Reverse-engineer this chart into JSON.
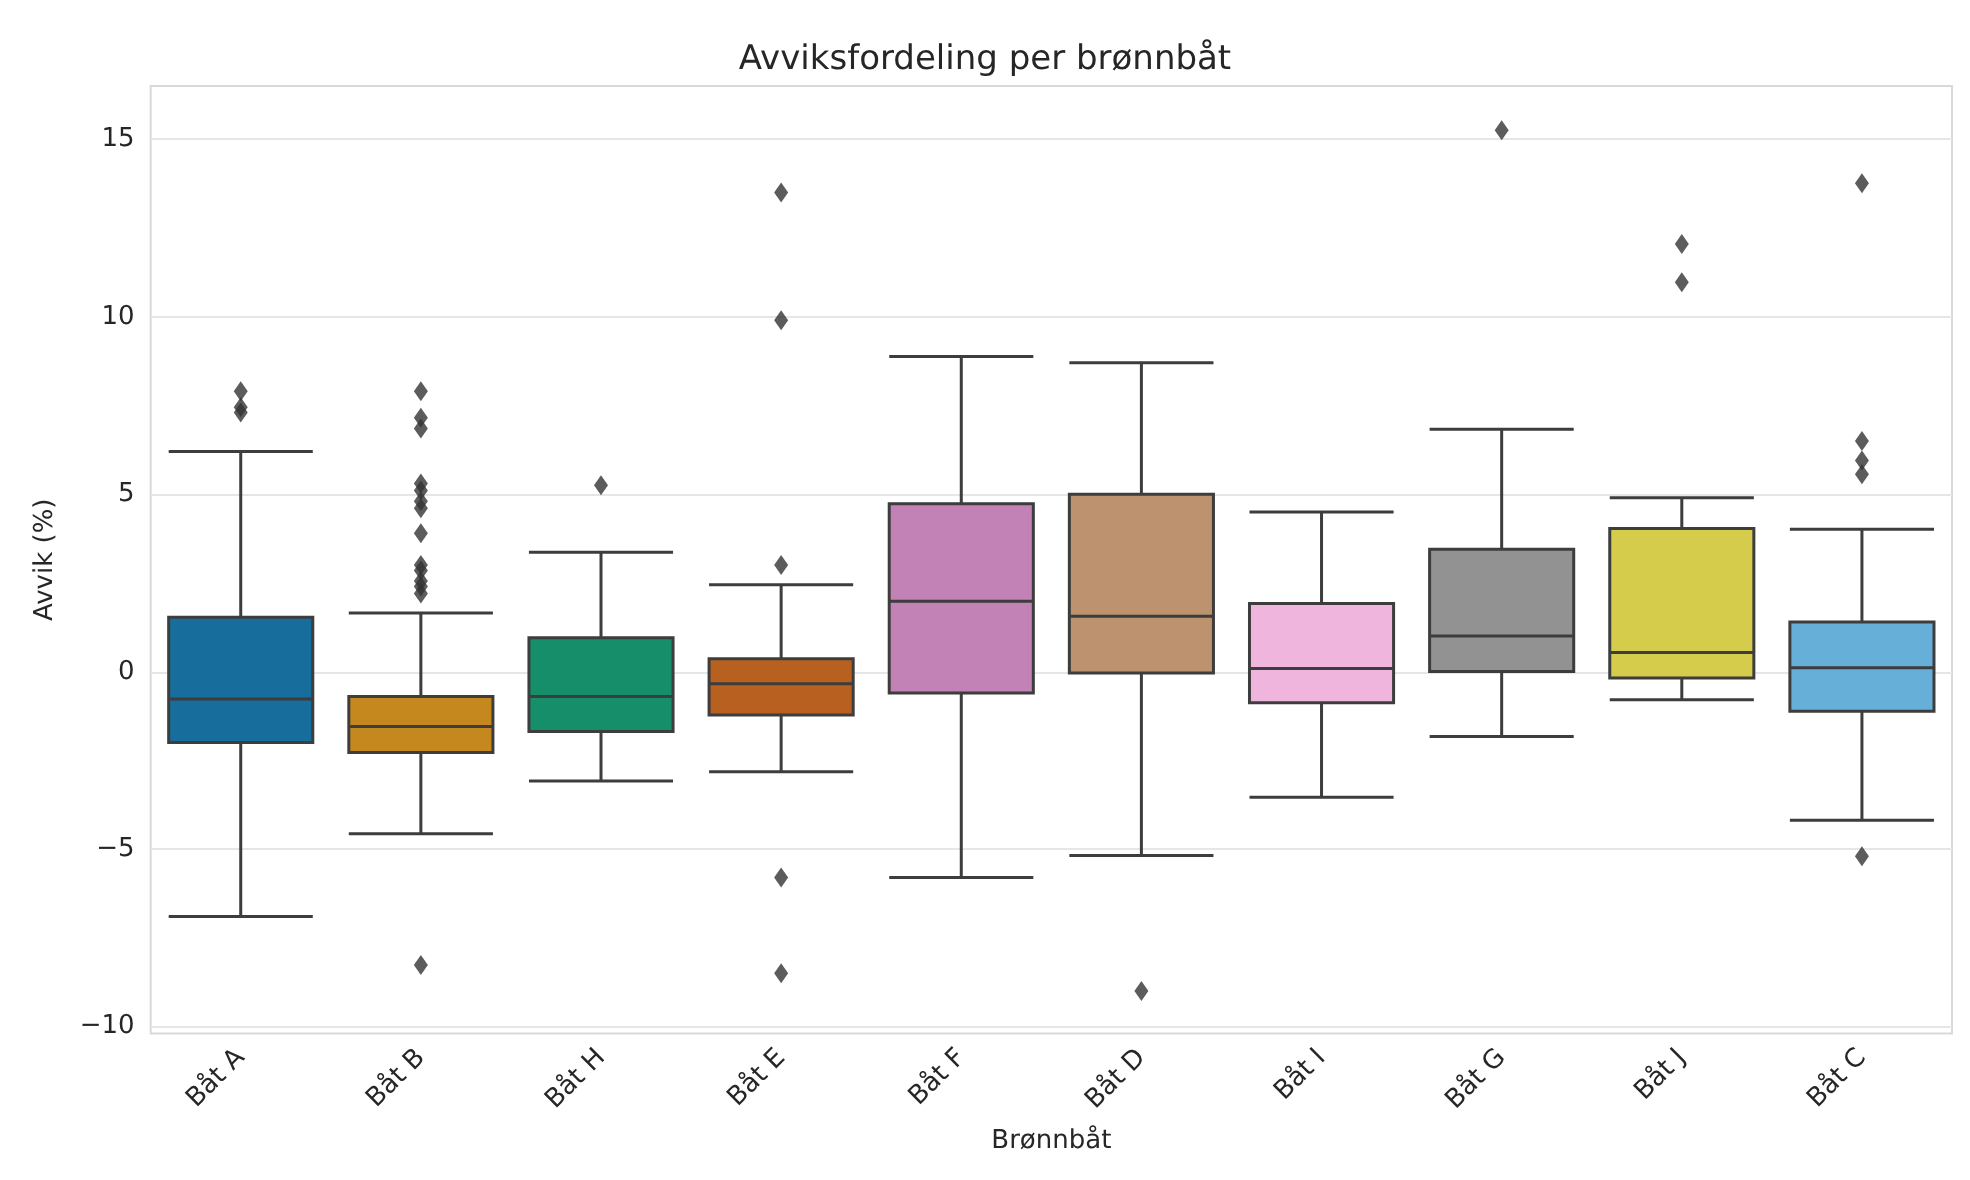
{
  "chart_data": {
    "type": "box",
    "title": "Avviksfordeling per brønnbåt",
    "xlabel": "Brønnbåt",
    "ylabel": "Avvik (%)",
    "categories": [
      "Båt A",
      "Båt B",
      "Båt H",
      "Båt E",
      "Båt F",
      "Båt D",
      "Båt I",
      "Båt G",
      "Båt J",
      "Båt C"
    ],
    "colors": [
      "#176d9c",
      "#c4881f",
      "#168e6a",
      "#b7601f",
      "#c382b5",
      "#bd926e",
      "#f0b5dd",
      "#929292",
      "#d5cc4b",
      "#66afd8"
    ],
    "boxes": [
      {
        "low": -6.9,
        "q1": -2.0,
        "median": -0.77,
        "q3": 1.53,
        "high": 6.2,
        "outliers": [
          7.9,
          7.45,
          7.3
        ]
      },
      {
        "low": -4.57,
        "q1": -2.28,
        "median": -1.55,
        "q3": -0.7,
        "high": 1.65,
        "outliers": [
          7.9,
          7.15,
          6.85,
          5.3,
          5.1,
          4.8,
          4.6,
          3.9,
          3.0,
          2.85,
          2.55,
          2.4,
          2.2,
          -8.27
        ]
      },
      {
        "low": -3.08,
        "q1": -1.69,
        "median": -0.7,
        "q3": 0.95,
        "high": 3.36,
        "outliers": [
          5.25
        ]
      },
      {
        "low": -2.82,
        "q1": -1.22,
        "median": -0.34,
        "q3": 0.36,
        "high": 2.45,
        "outliers": [
          13.5,
          9.9,
          3.0,
          -5.8,
          -8.5
        ]
      },
      {
        "low": -5.8,
        "q1": -0.6,
        "median": 1.98,
        "q3": 4.73,
        "high": 8.88
      },
      {
        "low": -5.18,
        "q1": -0.04,
        "median": 1.56,
        "q3": 5.0,
        "high": 8.7,
        "outliers": [
          -9.0
        ]
      },
      {
        "low": -3.54,
        "q1": -0.88,
        "median": 0.09,
        "q3": 1.92,
        "high": 4.5
      },
      {
        "low": -1.83,
        "q1": 0.0,
        "median": 1.0,
        "q3": 3.45,
        "high": 6.83,
        "outliers": [
          15.25
        ]
      },
      {
        "low": -0.79,
        "q1": -0.18,
        "median": 0.54,
        "q3": 4.03,
        "high": 4.9,
        "outliers": [
          12.05,
          10.97
        ]
      },
      {
        "low": -4.19,
        "q1": -1.12,
        "median": 0.11,
        "q3": 1.4,
        "high": 4.01,
        "outliers": [
          13.76,
          6.5,
          5.95,
          5.56,
          -5.2
        ]
      }
    ],
    "ylim": [
      -10.2,
      16.5
    ],
    "yticks": [
      -10,
      -5,
      0,
      5,
      10,
      15
    ],
    "grid": "y",
    "marker": "diamond"
  }
}
